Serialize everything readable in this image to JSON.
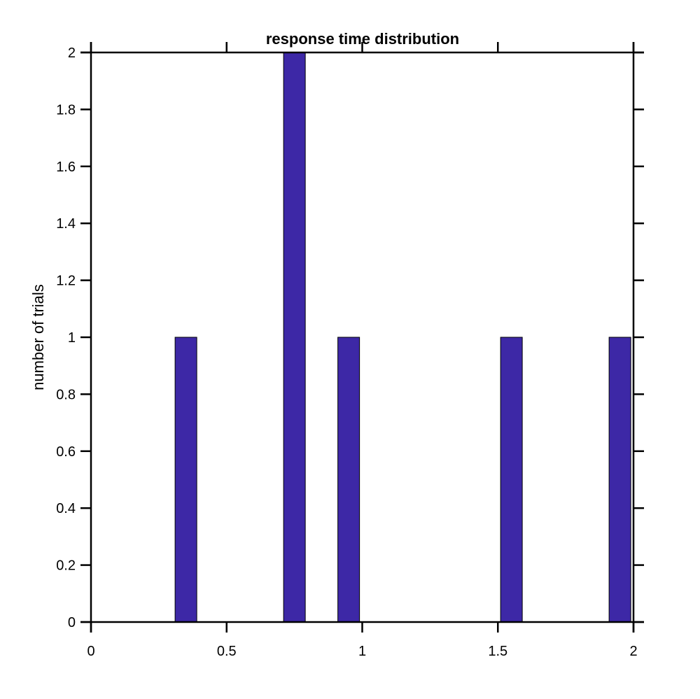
{
  "chart_data": {
    "type": "bar",
    "title": "response time distribution",
    "xlabel": "",
    "ylabel": "number of trials",
    "xlim": [
      0,
      2
    ],
    "ylim": [
      0,
      2
    ],
    "x_ticks": [
      "0",
      "0.5",
      "1",
      "1.5",
      "2"
    ],
    "y_ticks": [
      "0",
      "0.2",
      "0.4",
      "0.6",
      "0.8",
      "1",
      "1.2",
      "1.4",
      "1.6",
      "1.8",
      "2"
    ],
    "bin_width": 0.08,
    "bins": [
      {
        "start": 0.31,
        "end": 0.39,
        "count": 1
      },
      {
        "start": 0.71,
        "end": 0.79,
        "count": 2
      },
      {
        "start": 0.91,
        "end": 0.99,
        "count": 1
      },
      {
        "start": 1.51,
        "end": 1.59,
        "count": 1
      },
      {
        "start": 1.91,
        "end": 1.99,
        "count": 1
      }
    ],
    "bar_color": "#3d28a6",
    "bar_edge_color": "#000000",
    "grid": false,
    "legend": "none"
  }
}
